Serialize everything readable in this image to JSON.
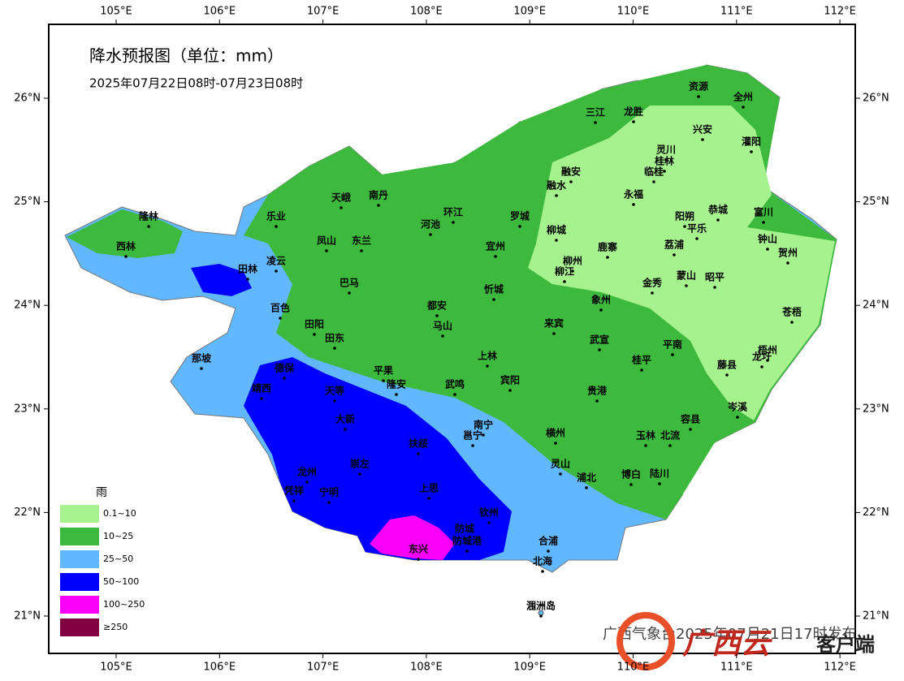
{
  "map": {
    "title": "降水预报图（单位：mm）",
    "subtitle": "2025年07月22日08时-07月23日08时",
    "lon_ticks": [
      {
        "value": 105,
        "label": "105°E"
      },
      {
        "value": 106,
        "label": "106°E"
      },
      {
        "value": 107,
        "label": "107°E"
      },
      {
        "value": 108,
        "label": "108°E"
      },
      {
        "value": 109,
        "label": "109°E"
      },
      {
        "value": 110,
        "label": "110°E"
      },
      {
        "value": 111,
        "label": "111°E"
      },
      {
        "value": 112,
        "label": "112°E"
      }
    ],
    "lat_ticks": [
      {
        "value": 26,
        "label": "26°N"
      },
      {
        "value": 25,
        "label": "25°N"
      },
      {
        "value": 24,
        "label": "24°N"
      },
      {
        "value": 23,
        "label": "23°N"
      },
      {
        "value": 22,
        "label": "22°N"
      },
      {
        "value": 21,
        "label": "21°N"
      }
    ],
    "legend": {
      "title": "雨",
      "items": [
        {
          "label": "0.1~10",
          "color": "#a6f28f"
        },
        {
          "label": "10~25",
          "color": "#3db93d"
        },
        {
          "label": "25~50",
          "color": "#61b8ff"
        },
        {
          "label": "50~100",
          "color": "#0000fe"
        },
        {
          "label": "100~250",
          "color": "#fa00fa"
        },
        {
          "label": "≥250",
          "color": "#800040"
        }
      ]
    },
    "cities": [
      "隆林",
      "西林",
      "乐业",
      "天峨",
      "南丹",
      "环江",
      "罗城",
      "融安",
      "三江",
      "龙胜",
      "资源",
      "全州",
      "兴安",
      "灌阳",
      "灵川",
      "桂林",
      "临桂",
      "融水",
      "永福",
      "恭城",
      "富川",
      "阳朔",
      "平乐",
      "钟山",
      "贺州",
      "荔浦",
      "鹿寨",
      "柳城",
      "柳州",
      "柳江",
      "河池",
      "宜州",
      "凤山",
      "东兰",
      "凌云",
      "田林",
      "巴马",
      "忻城",
      "蒙山",
      "昭平",
      "金秀",
      "象州",
      "苍梧",
      "都安",
      "百色",
      "田阳",
      "田东",
      "马山",
      "来宾",
      "武宣",
      "平南",
      "藤县",
      "梧州",
      "龙圩",
      "那坡",
      "上林",
      "桂平",
      "平果",
      "德保",
      "靖西",
      "隆安",
      "武鸣",
      "宾阳",
      "贵港",
      "天等",
      "岑溪",
      "大新",
      "南宁",
      "邕宁",
      "横州",
      "容县",
      "玉林",
      "北流",
      "扶绥",
      "龙州",
      "崇左",
      "灵山",
      "浦北",
      "博白",
      "陆川",
      "凭祥",
      "宁明",
      "上思",
      "钦州",
      "防城",
      "防城港",
      "东兴",
      "合浦",
      "北海",
      "涠洲岛"
    ],
    "footer": {
      "issued": "广西气象台2025年07月21日17时发布",
      "brand": "广西云",
      "client": "客户端"
    }
  }
}
